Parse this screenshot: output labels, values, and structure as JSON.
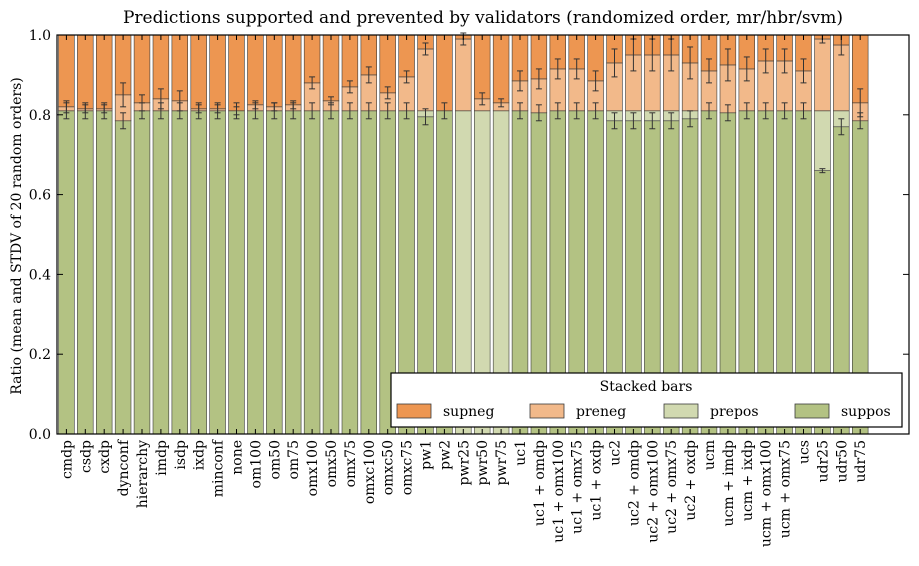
{
  "chart_data": {
    "type": "bar",
    "stacked": true,
    "title": "Predictions supported and prevented by validators (randomized order, mr/hbr/svm)",
    "xlabel": "",
    "ylabel": "Ratio (mean and STDV of 20 random orders)",
    "ylim": [
      0.0,
      1.0
    ],
    "yticks": [
      "0.0",
      "0.2",
      "0.4",
      "0.6",
      "0.8",
      "1.0"
    ],
    "grid": false,
    "legend": {
      "title": "Stacked bars",
      "placement": "lower-right",
      "columns": 4
    },
    "categories": [
      "cmdp",
      "csdp",
      "cxdp",
      "dynconf",
      "hierarchy",
      "imdp",
      "isdp",
      "ixdp",
      "minconf",
      "none",
      "om100",
      "om50",
      "om75",
      "omx100",
      "omx50",
      "omx75",
      "omxc100",
      "omxc50",
      "omxc75",
      "pw1",
      "pw2",
      "pwr25",
      "pwr50",
      "pwr75",
      "uc1",
      "uc1 + omdp",
      "uc1 + omx100",
      "uc1 + omx75",
      "uc1 + oxdp",
      "uc2",
      "uc2 + omdp",
      "uc2 + omx100",
      "uc2 + omx75",
      "uc2 + oxdp",
      "ucm",
      "ucm + imdp",
      "ucm + ixdp",
      "ucm + omx100",
      "ucm + omx75",
      "ucs",
      "udr25",
      "udr50",
      "udr75"
    ],
    "series": [
      {
        "name": "suppos",
        "color": "#b3c283",
        "values": [
          0.81,
          0.81,
          0.81,
          0.785,
          0.81,
          0.81,
          0.81,
          0.81,
          0.81,
          0.81,
          0.81,
          0.81,
          0.81,
          0.81,
          0.81,
          0.81,
          0.81,
          0.81,
          0.81,
          0.795,
          0.81,
          0.0,
          0.0,
          0.0,
          0.81,
          0.805,
          0.81,
          0.81,
          0.81,
          0.785,
          0.785,
          0.785,
          0.785,
          0.79,
          0.81,
          0.805,
          0.81,
          0.81,
          0.81,
          0.81,
          0.66,
          0.77,
          0.785
        ]
      },
      {
        "name": "prepos",
        "color": "#d1d9b0",
        "values": [
          0.0,
          0.0,
          0.0,
          0.0,
          0.0,
          0.0,
          0.0,
          0.0,
          0.0,
          0.0,
          0.0,
          0.0,
          0.0,
          0.0,
          0.0,
          0.0,
          0.0,
          0.0,
          0.0,
          0.015,
          0.0,
          0.81,
          0.81,
          0.81,
          0.0,
          0.0,
          0.0,
          0.0,
          0.0,
          0.025,
          0.025,
          0.025,
          0.025,
          0.02,
          0.0,
          0.0,
          0.0,
          0.0,
          0.0,
          0.0,
          0.15,
          0.04,
          0.0
        ]
      },
      {
        "name": "preneg",
        "color": "#f2b98a",
        "values": [
          0.01,
          0.005,
          0.005,
          0.065,
          0.02,
          0.03,
          0.025,
          0.005,
          0.005,
          0.0,
          0.015,
          0.01,
          0.015,
          0.07,
          0.025,
          0.06,
          0.09,
          0.045,
          0.085,
          0.155,
          0.0,
          0.18,
          0.03,
          0.02,
          0.075,
          0.085,
          0.105,
          0.105,
          0.075,
          0.12,
          0.14,
          0.14,
          0.14,
          0.12,
          0.1,
          0.12,
          0.105,
          0.125,
          0.125,
          0.1,
          0.18,
          0.165,
          0.045
        ]
      },
      {
        "name": "supneg",
        "color": "#ed9651",
        "values": [
          0.18,
          0.185,
          0.185,
          0.15,
          0.17,
          0.16,
          0.165,
          0.185,
          0.185,
          0.19,
          0.175,
          0.18,
          0.175,
          0.12,
          0.165,
          0.13,
          0.1,
          0.145,
          0.105,
          0.035,
          0.19,
          0.01,
          0.16,
          0.17,
          0.115,
          0.11,
          0.085,
          0.085,
          0.115,
          0.07,
          0.05,
          0.05,
          0.05,
          0.07,
          0.09,
          0.075,
          0.085,
          0.065,
          0.065,
          0.09,
          0.01,
          0.025,
          0.17
        ]
      }
    ],
    "error_bars": {
      "suppos": [
        0.02,
        0.02,
        0.02,
        0.02,
        0.02,
        0.02,
        0.02,
        0.02,
        0.02,
        0.02,
        0.02,
        0.02,
        0.02,
        0.02,
        0.02,
        0.02,
        0.02,
        0.02,
        0.02,
        0.02,
        0.02,
        0.0,
        0.0,
        0.0,
        0.02,
        0.02,
        0.02,
        0.02,
        0.02,
        0.02,
        0.02,
        0.02,
        0.02,
        0.02,
        0.02,
        0.02,
        0.02,
        0.02,
        0.02,
        0.02,
        0.005,
        0.02,
        0.02
      ],
      "top_of_preneg": [
        0.015,
        0.01,
        0.01,
        0.03,
        0.02,
        0.025,
        0.025,
        0.01,
        0.01,
        0.01,
        0.01,
        0.01,
        0.01,
        0.015,
        0.01,
        0.015,
        0.02,
        0.015,
        0.015,
        0.015,
        0.0,
        0.015,
        0.015,
        0.01,
        0.025,
        0.025,
        0.025,
        0.025,
        0.025,
        0.035,
        0.04,
        0.04,
        0.04,
        0.04,
        0.03,
        0.04,
        0.03,
        0.03,
        0.03,
        0.03,
        0.01,
        0.025,
        0.035
      ]
    }
  }
}
